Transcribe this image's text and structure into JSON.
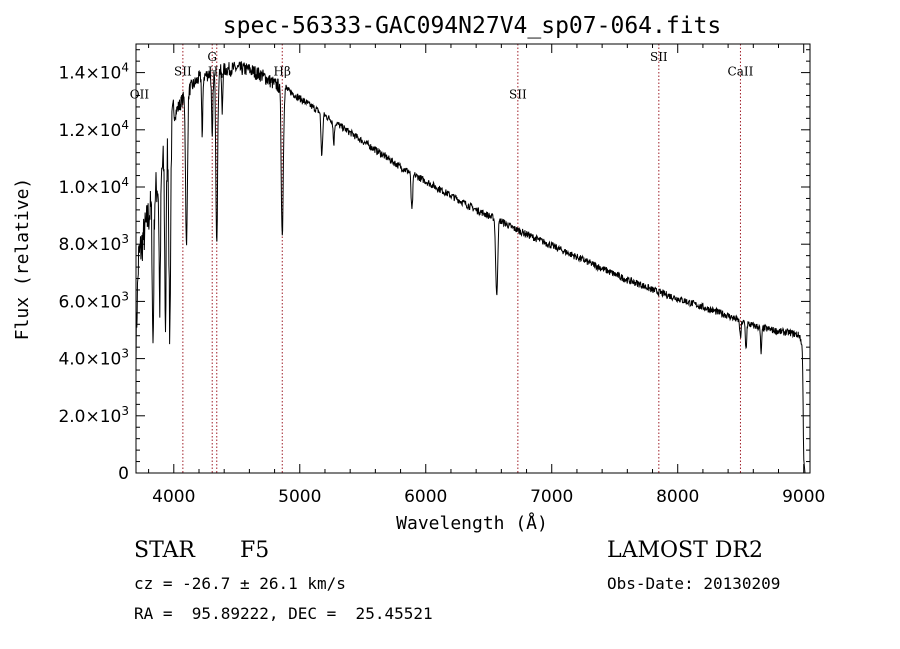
{
  "chart_data": {
    "type": "line",
    "title": "spec-56333-GAC094N27V4_sp07-064.fits",
    "xlabel": "Wavelength (Å)",
    "ylabel": "Flux (relative)",
    "xlim": [
      3700,
      9050
    ],
    "ylim": [
      0,
      15000
    ],
    "x_ticks": [
      4000,
      5000,
      6000,
      7000,
      8000,
      9000
    ],
    "y_ticks": [
      {
        "value": 0,
        "mantissa": "0",
        "exp": ""
      },
      {
        "value": 2000,
        "mantissa": "2.0×10",
        "exp": "3"
      },
      {
        "value": 4000,
        "mantissa": "4.0×10",
        "exp": "3"
      },
      {
        "value": 6000,
        "mantissa": "6.0×10",
        "exp": "3"
      },
      {
        "value": 8000,
        "mantissa": "8.0×10",
        "exp": "3"
      },
      {
        "value": 10000,
        "mantissa": "1.0×10",
        "exp": "4"
      },
      {
        "value": 12000,
        "mantissa": "1.2×10",
        "exp": "4"
      },
      {
        "value": 14000,
        "mantissa": "1.4×10",
        "exp": "4"
      }
    ],
    "lines": [
      {
        "label": "OII",
        "x": 3727,
        "label_flux": 13100,
        "show_line": false
      },
      {
        "label": "SII",
        "x": 4072,
        "label_flux": 13900,
        "show_line": true
      },
      {
        "label": "G",
        "x": 4305,
        "label_flux": 14400,
        "show_line": true
      },
      {
        "label": "Hγ",
        "x": 4341,
        "label_flux": 13900,
        "show_line": true
      },
      {
        "label": "Hβ",
        "x": 4861,
        "label_flux": 13900,
        "show_line": true
      },
      {
        "label": "SII",
        "x": 6731,
        "label_flux": 13100,
        "show_line": true
      },
      {
        "label": "SII",
        "x": 7850,
        "label_flux": 14400,
        "show_line": true
      },
      {
        "label": "CaII",
        "x": 8498,
        "label_flux": 13900,
        "show_line": true
      }
    ],
    "series": [
      {
        "continuum": [
          [
            3700,
            4500
          ],
          [
            3720,
            7500
          ],
          [
            3800,
            9000
          ],
          [
            3900,
            10500
          ],
          [
            4000,
            12500
          ],
          [
            4100,
            13300
          ],
          [
            4200,
            13800
          ],
          [
            4300,
            14000
          ],
          [
            4400,
            14100
          ],
          [
            4500,
            14150
          ],
          [
            4600,
            14100
          ],
          [
            4700,
            13900
          ],
          [
            4800,
            13600
          ],
          [
            4900,
            13400
          ],
          [
            5000,
            13100
          ],
          [
            5100,
            12800
          ],
          [
            5200,
            12500
          ],
          [
            5300,
            12200
          ],
          [
            5400,
            11900
          ],
          [
            5500,
            11600
          ],
          [
            5600,
            11300
          ],
          [
            5700,
            11000
          ],
          [
            5800,
            10700
          ],
          [
            5900,
            10450
          ],
          [
            6000,
            10200
          ],
          [
            6100,
            9950
          ],
          [
            6200,
            9700
          ],
          [
            6300,
            9450
          ],
          [
            6400,
            9200
          ],
          [
            6500,
            9000
          ],
          [
            6600,
            8800
          ],
          [
            6700,
            8550
          ],
          [
            6800,
            8350
          ],
          [
            6900,
            8150
          ],
          [
            7000,
            7950
          ],
          [
            7100,
            7750
          ],
          [
            7200,
            7550
          ],
          [
            7300,
            7350
          ],
          [
            7400,
            7150
          ],
          [
            7500,
            6950
          ],
          [
            7600,
            6750
          ],
          [
            7700,
            6600
          ],
          [
            7800,
            6400
          ],
          [
            7900,
            6250
          ],
          [
            8000,
            6100
          ],
          [
            8100,
            5950
          ],
          [
            8200,
            5800
          ],
          [
            8300,
            5650
          ],
          [
            8400,
            5500
          ],
          [
            8500,
            5300
          ],
          [
            8600,
            5150
          ],
          [
            8700,
            5050
          ],
          [
            8800,
            4950
          ],
          [
            8900,
            4900
          ],
          [
            8970,
            4800
          ],
          [
            8990,
            4300
          ],
          [
            9000,
            500
          ],
          [
            9010,
            0
          ]
        ],
        "absorption": [
          {
            "x": 3835,
            "depth": 5000,
            "width": 8
          },
          {
            "x": 3889,
            "depth": 4500,
            "width": 8
          },
          {
            "x": 3934,
            "depth": 6000,
            "width": 8
          },
          {
            "x": 3968,
            "depth": 7000,
            "width": 9
          },
          {
            "x": 4101,
            "depth": 5500,
            "width": 10
          },
          {
            "x": 4226,
            "depth": 2200,
            "width": 6
          },
          {
            "x": 4305,
            "depth": 2500,
            "width": 7
          },
          {
            "x": 4341,
            "depth": 5800,
            "width": 10
          },
          {
            "x": 4384,
            "depth": 1500,
            "width": 6
          },
          {
            "x": 4861,
            "depth": 5200,
            "width": 11
          },
          {
            "x": 5175,
            "depth": 1500,
            "width": 9
          },
          {
            "x": 5270,
            "depth": 800,
            "width": 7
          },
          {
            "x": 5890,
            "depth": 1300,
            "width": 9
          },
          {
            "x": 6563,
            "depth": 2700,
            "width": 11
          },
          {
            "x": 8498,
            "depth": 600,
            "width": 7
          },
          {
            "x": 8542,
            "depth": 900,
            "width": 7
          },
          {
            "x": 8662,
            "depth": 900,
            "width": 7
          }
        ],
        "noise_amplitude": 250
      }
    ]
  },
  "info": {
    "object_class": "STAR",
    "subclass": "F5",
    "redshift": "cz = -26.7 ± 26.1 km/s",
    "coords": "RA =  95.89222, DEC =  25.45521",
    "survey": "LAMOST DR2",
    "obs_date": "Obs-Date: 20130209"
  }
}
